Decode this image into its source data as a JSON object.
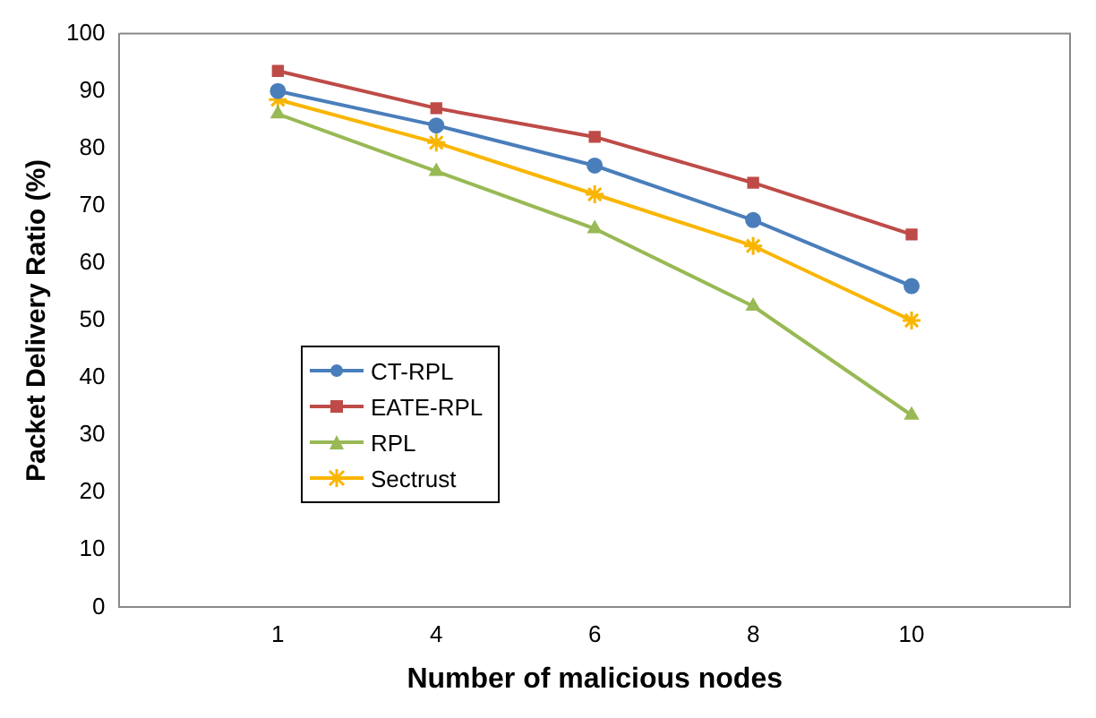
{
  "chart_data": {
    "type": "line",
    "xlabel": "Number of malicious nodes",
    "ylabel": "Packet Delivery Ratio (%)",
    "categories": [
      "1",
      "4",
      "6",
      "8",
      "10"
    ],
    "series": [
      {
        "name": "CT-RPL",
        "color": "#4a7ebb",
        "marker": "circle",
        "values": [
          90,
          84,
          77,
          67.5,
          56
        ]
      },
      {
        "name": "EATE-RPL",
        "color": "#be4b48",
        "marker": "square",
        "values": [
          93.5,
          87,
          82,
          74,
          65
        ]
      },
      {
        "name": "RPL",
        "color": "#98b954",
        "marker": "triangle",
        "values": [
          86,
          76,
          66,
          52.5,
          33.5
        ]
      },
      {
        "name": "Sectrust",
        "color": "#f9b500",
        "marker": "cross",
        "values": [
          88.5,
          81,
          72,
          63,
          50
        ]
      }
    ],
    "ylim": [
      0,
      100
    ],
    "yticks": [
      0,
      10,
      20,
      30,
      40,
      50,
      60,
      70,
      80,
      90,
      100
    ],
    "grid": false,
    "legend": "left",
    "line_style": "solid"
  }
}
